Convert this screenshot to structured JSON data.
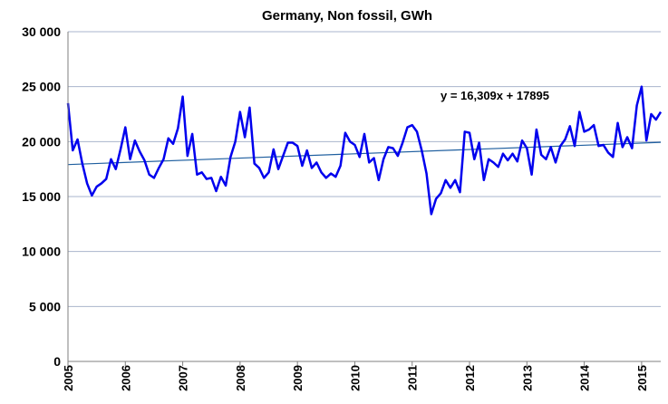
{
  "chart_data": {
    "type": "line",
    "title": "Germany, Non fossil, GWh",
    "xlabel": "",
    "ylabel": "",
    "ylim": [
      0,
      30000
    ],
    "y_ticks": [
      0,
      5000,
      10000,
      15000,
      20000,
      25000,
      30000
    ],
    "y_tick_labels": [
      "0",
      "5 000",
      "10 000",
      "15 000",
      "20 000",
      "25 000",
      "30 000"
    ],
    "x_tick_labels": [
      "2005",
      "2006",
      "2007",
      "2008",
      "2009",
      "2010",
      "2011",
      "2012",
      "2013",
      "2014",
      "2015"
    ],
    "grid": "horizontal",
    "colors": {
      "series": "#0000ee",
      "trend": "#1f5f9f",
      "grid": "#aab4cc",
      "axis": "#7f7f7f"
    },
    "series": [
      {
        "values": [
          23500,
          19200,
          20200,
          18000,
          16200,
          15100,
          15900,
          16200,
          16600,
          18400,
          17500,
          19300,
          21300,
          18400,
          20100,
          19100,
          18300,
          17000,
          16700,
          17600,
          18400,
          20300,
          19800,
          21200,
          24100,
          18700,
          20700,
          17000,
          17200,
          16600,
          16700,
          15500,
          16800,
          16000,
          18600,
          20000,
          22700,
          20400,
          23100,
          18000,
          17600,
          16700,
          17200,
          19300,
          17500,
          18700,
          19900,
          19900,
          19600,
          17800,
          19200,
          17600,
          18100,
          17200,
          16700,
          17100,
          16800,
          17800,
          20800,
          20000,
          19700,
          18600,
          20700,
          18100,
          18500,
          16500,
          18400,
          19500,
          19400,
          18700,
          19900,
          21300,
          21500,
          20900,
          19200,
          17100,
          13400,
          14800,
          15300,
          16500,
          15800,
          16500,
          15400,
          20900,
          20800,
          18400,
          19900,
          16500,
          18400,
          18100,
          17700,
          18900,
          18300,
          18900,
          18200,
          20100,
          19400,
          17000,
          21100,
          18800,
          18400,
          19500,
          18100,
          19600,
          20200,
          21400,
          19600,
          22700,
          20900,
          21100,
          21500,
          19600,
          19700,
          19000,
          18600,
          21700,
          19500,
          20400,
          19400,
          23300,
          25000,
          20100,
          22500,
          22000,
          22700
        ]
      }
    ],
    "trendline": {
      "label": "y = 16,309x + 17895",
      "slope": 16.309,
      "intercept": 17895
    }
  }
}
